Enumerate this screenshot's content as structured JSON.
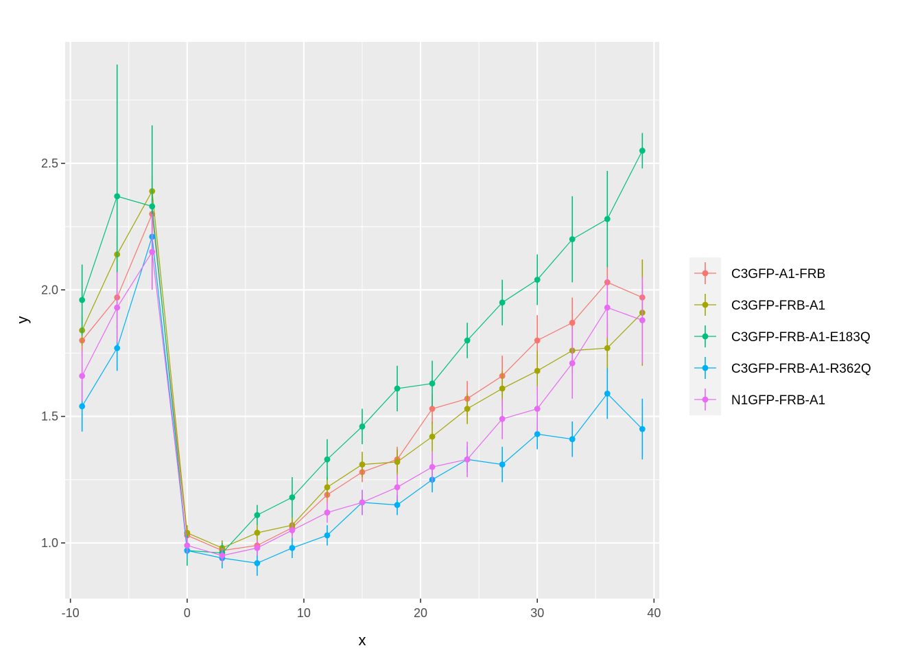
{
  "chart_data": {
    "type": "line",
    "title": "",
    "xlabel": "x",
    "ylabel": "y",
    "xlim": [
      -10.45,
      40.45
    ],
    "ylim": [
      0.78,
      2.98
    ],
    "x_ticks": [
      -10,
      0,
      10,
      20,
      30,
      40
    ],
    "x_tick_labels": [
      "-10",
      "0",
      "10",
      "20",
      "30",
      "40"
    ],
    "x_minor_ticks": [
      -5,
      5,
      15,
      25,
      35
    ],
    "y_ticks": [
      1.0,
      1.5,
      2.0,
      2.5
    ],
    "y_tick_labels": [
      "1.0",
      "1.5",
      "2.0",
      "2.5"
    ],
    "y_minor_ticks": [
      1.25,
      1.75,
      2.25,
      2.75
    ],
    "grid": true,
    "legend_position": "right",
    "x": [
      -9,
      -6,
      -3,
      0,
      3,
      6,
      9,
      12,
      15,
      18,
      21,
      24,
      27,
      30,
      33,
      36,
      39
    ],
    "series": [
      {
        "name": "C3GFP-A1-FRB",
        "color": "#F8766D",
        "values": [
          1.8,
          1.97,
          2.3,
          1.03,
          0.97,
          0.99,
          1.06,
          1.19,
          1.28,
          1.33,
          1.53,
          1.57,
          1.66,
          1.8,
          1.87,
          2.03,
          1.97
        ],
        "error": [
          0.06,
          0.06,
          0.06,
          0.03,
          0.02,
          0.02,
          0.03,
          0.03,
          0.04,
          0.05,
          0.06,
          0.07,
          0.08,
          0.1,
          0.1,
          0.07,
          0.06
        ]
      },
      {
        "name": "C3GFP-FRB-A1",
        "color": "#A3A500",
        "values": [
          1.84,
          2.14,
          2.39,
          1.04,
          0.98,
          1.04,
          1.07,
          1.22,
          1.31,
          1.32,
          1.42,
          1.53,
          1.61,
          1.68,
          1.76,
          1.77,
          1.91
        ],
        "error": [
          0.06,
          0.07,
          0.06,
          0.03,
          0.03,
          0.03,
          0.03,
          0.04,
          0.05,
          0.05,
          0.06,
          0.06,
          0.07,
          0.08,
          0.09,
          0.1,
          0.21
        ]
      },
      {
        "name": "C3GFP-FRB-A1-E183Q",
        "color": "#00BF7D",
        "values": [
          1.96,
          2.37,
          2.33,
          0.97,
          0.96,
          1.11,
          1.18,
          1.33,
          1.46,
          1.61,
          1.63,
          1.8,
          1.95,
          2.04,
          2.2,
          2.28,
          2.55
        ],
        "error": [
          0.14,
          0.52,
          0.32,
          0.06,
          0.04,
          0.04,
          0.08,
          0.08,
          0.07,
          0.09,
          0.09,
          0.07,
          0.09,
          0.1,
          0.17,
          0.19,
          0.07
        ]
      },
      {
        "name": "C3GFP-FRB-A1-R362Q",
        "color": "#00B0F6",
        "values": [
          1.54,
          1.77,
          2.21,
          0.97,
          0.94,
          0.92,
          0.98,
          1.03,
          1.16,
          1.15,
          1.25,
          1.33,
          1.31,
          1.43,
          1.41,
          1.59,
          1.45
        ],
        "error": [
          0.1,
          0.09,
          0.06,
          0.03,
          0.04,
          0.05,
          0.04,
          0.04,
          0.05,
          0.04,
          0.05,
          0.05,
          0.07,
          0.06,
          0.07,
          0.1,
          0.12
        ]
      },
      {
        "name": "N1GFP-FRB-A1",
        "color": "#E76BF3",
        "values": [
          1.66,
          1.93,
          2.15,
          0.99,
          0.95,
          0.98,
          1.05,
          1.12,
          1.16,
          1.22,
          1.3,
          1.33,
          1.49,
          1.53,
          1.71,
          1.93,
          1.88
        ],
        "error": [
          0.1,
          0.14,
          0.15,
          0.03,
          0.03,
          0.03,
          0.03,
          0.04,
          0.05,
          0.05,
          0.06,
          0.07,
          0.08,
          0.09,
          0.14,
          0.12,
          0.17
        ]
      }
    ]
  }
}
